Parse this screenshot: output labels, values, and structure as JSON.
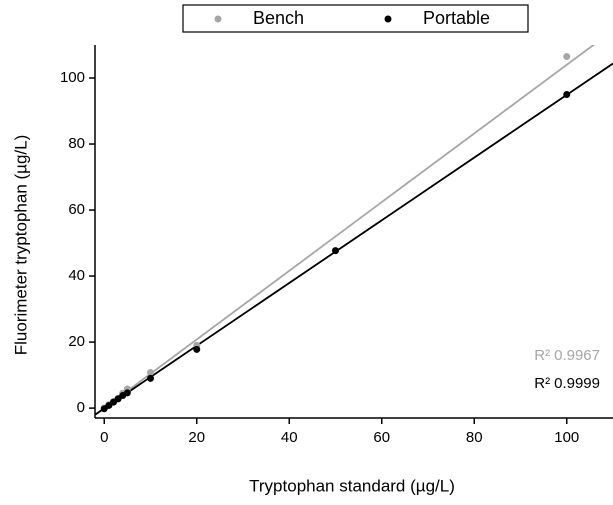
{
  "chart_data": {
    "type": "scatter",
    "x_label": "Tryptophan standard (µg/L)",
    "y_label": "Fluorimeter tryptophan (µg/L)",
    "xlim": [
      -2,
      110
    ],
    "ylim": [
      -3,
      110
    ],
    "xticks": [
      0,
      20,
      40,
      60,
      80,
      100
    ],
    "yticks": [
      0,
      20,
      40,
      60,
      80,
      100
    ],
    "grid": false,
    "legend": "top",
    "series": [
      {
        "name": "Bench",
        "color": "#a6a6a6",
        "x": [
          0,
          1,
          2,
          3,
          4,
          5,
          10,
          20,
          100
        ],
        "values": [
          0,
          1,
          2,
          3,
          4.5,
          5.8,
          10.8,
          19,
          106.5
        ],
        "trendline": {
          "slope": 1.04,
          "intercept": 0
        },
        "annotation": {
          "text": "R²",
          "value": "0.9967"
        }
      },
      {
        "name": "Portable",
        "color": "#000000",
        "x": [
          0,
          1,
          2,
          3,
          4,
          5,
          10,
          20,
          50,
          100
        ],
        "values": [
          -0.2,
          0.8,
          1.8,
          2.8,
          3.8,
          4.6,
          9,
          17.8,
          47.7,
          95
        ],
        "trendline": {
          "slope": 0.95,
          "intercept": -0.1
        },
        "annotation": {
          "text": "R²",
          "value": "0.9999"
        }
      }
    ]
  }
}
